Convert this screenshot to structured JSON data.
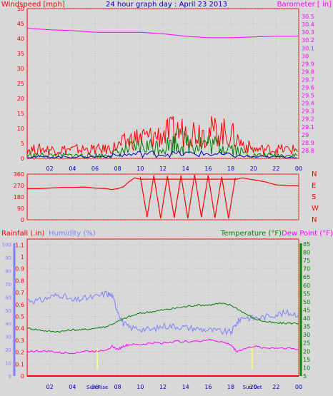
{
  "chart_data": [
    {
      "type": "line",
      "title": "24 hour graph day : April 23 2013",
      "ylabel": "Windspeed [mph]",
      "y2label": "Barometer [ in]",
      "ylim": [
        0,
        50
      ],
      "y2lim": [
        28.7,
        30.6
      ],
      "y_ticks": [
        0,
        5,
        10,
        15,
        20,
        25,
        30,
        35,
        40,
        45,
        50
      ],
      "y2_ticks": [
        28.8,
        28.9,
        29.0,
        29.1,
        29.2,
        29.3,
        29.4,
        29.5,
        29.6,
        29.7,
        29.8,
        29.9,
        30.0,
        30.1,
        30.2,
        30.3,
        30.4,
        30.5
      ],
      "x_ticks": [
        "02",
        "04",
        "06",
        "08",
        "10",
        "12",
        "14",
        "16",
        "18",
        "20",
        "22",
        "00"
      ],
      "grid": true,
      "series": [
        {
          "color": "#ff00ff",
          "axis": "right",
          "x": [
            0,
            2,
            4,
            6,
            8,
            10,
            12,
            14,
            16,
            17,
            18,
            20,
            22,
            24
          ],
          "y": [
            30.35,
            30.33,
            30.32,
            30.3,
            30.3,
            30.3,
            30.28,
            30.25,
            30.23,
            30.23,
            30.23,
            30.24,
            30.25,
            30.25
          ]
        },
        {
          "color": "#ff0000",
          "axis": "left",
          "x": [
            0,
            1,
            2,
            3,
            4,
            5,
            6,
            7,
            8,
            9,
            10,
            11,
            12,
            13,
            14,
            15,
            16,
            17,
            18,
            19,
            20,
            21,
            22,
            23,
            24
          ],
          "y": [
            3,
            3,
            3,
            3,
            3,
            3,
            3,
            3,
            4,
            6,
            7,
            7,
            8,
            9,
            9,
            9,
            9,
            9,
            8,
            5,
            3,
            3,
            3,
            3,
            3
          ]
        },
        {
          "color": "#008000",
          "axis": "left",
          "x": [
            0,
            1,
            2,
            3,
            4,
            5,
            6,
            7,
            8,
            9,
            10,
            11,
            12,
            13,
            14,
            15,
            16,
            17,
            18,
            19,
            20,
            21,
            22,
            23,
            24
          ],
          "y": [
            1,
            1,
            1,
            1,
            1,
            1,
            1,
            1,
            2,
            3,
            4,
            4,
            4,
            5,
            5,
            5,
            5,
            4,
            4,
            2,
            1,
            1,
            1,
            1,
            1
          ]
        },
        {
          "color": "#0000c0",
          "axis": "left",
          "x": [
            0,
            2,
            4,
            6,
            8,
            10,
            12,
            14,
            16,
            18,
            20,
            22,
            24
          ],
          "y": [
            0.5,
            0.5,
            0.5,
            0.5,
            1,
            1.5,
            1.5,
            1.5,
            1.5,
            1,
            0.5,
            0.5,
            0.5
          ]
        }
      ]
    },
    {
      "type": "line",
      "ylim": [
        0,
        360
      ],
      "y_ticks": [
        0,
        90,
        180,
        270,
        360
      ],
      "y2_ticks": [
        "N",
        "W",
        "S",
        "E",
        "N"
      ],
      "x_ticks": [
        "02",
        "04",
        "06",
        "08",
        "10",
        "12",
        "14",
        "16",
        "18",
        "20",
        "22",
        "00"
      ],
      "grid": true,
      "series": [
        {
          "color": "#ff0000",
          "x": [
            0,
            1,
            2,
            3,
            4,
            5,
            6,
            7,
            7.5,
            8,
            8.5,
            9,
            9.5,
            10,
            18.5,
            19,
            20,
            21,
            22,
            23,
            24
          ],
          "y": [
            245,
            245,
            250,
            255,
            255,
            258,
            250,
            245,
            238,
            245,
            260,
            300,
            330,
            320,
            320,
            330,
            315,
            300,
            275,
            270,
            268
          ]
        },
        {
          "color": "#ff0000",
          "x": [
            10,
            10.6,
            11.2,
            11.8,
            12.4,
            13,
            13.6,
            14.2,
            14.8,
            15.4,
            16,
            16.6,
            17.2,
            17.8,
            18.4
          ],
          "y": [
            340,
            20,
            350,
            10,
            345,
            15,
            350,
            10,
            355,
            20,
            350,
            15,
            340,
            10,
            330
          ]
        }
      ]
    },
    {
      "type": "line",
      "ylabel": "Rainfall (.in)",
      "ylabel2": "Humidity (%)",
      "y2label": "Temperature (°F)",
      "y2label2": "Dew Point (°F)",
      "ylim": [
        0,
        1.15
      ],
      "y2lim": [
        5,
        88
      ],
      "y_ticks": [
        0,
        0.1,
        0.2,
        0.3,
        0.4,
        0.5,
        0.6,
        0.7,
        0.8,
        0.9,
        1,
        1.1
      ],
      "humidity_ticks": [
        0,
        10,
        20,
        30,
        40,
        50,
        60,
        70,
        80,
        90,
        100
      ],
      "y2_ticks": [
        5,
        10,
        15,
        20,
        25,
        30,
        35,
        40,
        45,
        50,
        55,
        60,
        65,
        70,
        75,
        80,
        85
      ],
      "x_ticks": [
        "02",
        "04",
        "06",
        "08",
        "10",
        "12",
        "14",
        "16",
        "18",
        "20",
        "22",
        "00"
      ],
      "annotations": [
        "Sun Rise",
        "Sun Set"
      ],
      "grid": true,
      "series": [
        {
          "color": "#8080ff",
          "axis": "humidity",
          "x": [
            0,
            1,
            2,
            3,
            4,
            5,
            6,
            7,
            7.5,
            8,
            8.5,
            9,
            10,
            11,
            12,
            13,
            14,
            15,
            16,
            17,
            18,
            18.5,
            19,
            20,
            21,
            22,
            23,
            24
          ],
          "y": [
            58,
            57,
            60,
            62,
            57,
            59,
            60,
            63,
            61,
            50,
            40,
            37,
            36,
            35,
            38,
            38,
            37,
            36,
            35,
            34,
            33,
            40,
            45,
            44,
            45,
            47,
            48,
            47
          ]
        },
        {
          "color": "#008000",
          "axis": "right",
          "x": [
            0,
            1,
            2,
            3,
            4,
            5,
            6,
            7,
            8,
            9,
            10,
            11,
            12,
            13,
            14,
            15,
            16,
            17,
            18,
            19,
            20,
            21,
            22,
            23,
            24
          ],
          "y": [
            34,
            33,
            32,
            32,
            33,
            33,
            34,
            35,
            38,
            41,
            43,
            44,
            45,
            46,
            47,
            48,
            48,
            49,
            48,
            44,
            40,
            38,
            37,
            37,
            37
          ]
        },
        {
          "color": "#ff00ff",
          "axis": "right",
          "x": [
            0,
            1,
            2,
            3,
            4,
            5,
            6,
            7,
            7.5,
            8,
            8.5,
            9,
            10,
            11,
            12,
            13,
            14,
            15,
            16,
            17,
            18,
            18.5,
            19,
            20,
            21,
            22,
            23,
            24
          ],
          "y": [
            20,
            20,
            20,
            19,
            19,
            20,
            20,
            21,
            23,
            21,
            23,
            24,
            24,
            25,
            25,
            26,
            26,
            26,
            27,
            26,
            24,
            20,
            21,
            23,
            22,
            22,
            22,
            21
          ]
        },
        {
          "color": "#ff0000",
          "axis": "left",
          "x": [
            0,
            24
          ],
          "y": [
            0,
            0
          ]
        }
      ]
    }
  ]
}
